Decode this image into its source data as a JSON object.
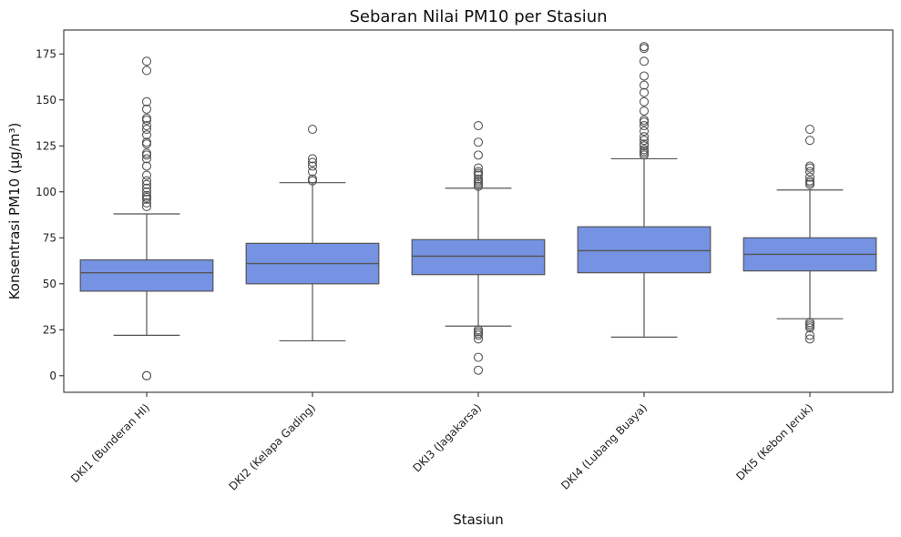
{
  "chart_data": {
    "type": "box",
    "title": "Sebaran Nilai PM10 per Stasiun",
    "xlabel": "Stasiun",
    "ylabel": "Konsentrasi PM10 (µg/m³)",
    "ylim": [
      -9,
      188
    ],
    "yticks": [
      0,
      25,
      50,
      75,
      100,
      125,
      150,
      175
    ],
    "box_color": "#7592e3",
    "line_color": "#555555",
    "grid": false,
    "legend": "none",
    "categories": [
      "DKI1 (Bunderan HI)",
      "DKI2 (Kelapa Gading)",
      "DKI3 (Jagakarsa)",
      "DKI4 (Lubang Buaya)",
      "DKI5 (Kebon Jeruk)"
    ],
    "series": [
      {
        "whisker_low": 22,
        "q1": 46,
        "median": 56,
        "q3": 63,
        "whisker_high": 88,
        "outliers": [
          0,
          0,
          92,
          94,
          96,
          97,
          98,
          100,
          102,
          104,
          106,
          109,
          114,
          118,
          120,
          121,
          126,
          127,
          131,
          134,
          136,
          139,
          140,
          145,
          149,
          166,
          171
        ]
      },
      {
        "whisker_low": 19,
        "q1": 50,
        "median": 61,
        "q3": 72,
        "whisker_high": 105,
        "outliers": [
          106,
          107,
          111,
          114,
          116,
          118,
          134
        ]
      },
      {
        "whisker_low": 27,
        "q1": 55,
        "median": 65,
        "q3": 74,
        "whisker_high": 102,
        "outliers": [
          3,
          10,
          20,
          22,
          23,
          24,
          25,
          103,
          104,
          105,
          106,
          107,
          109,
          110,
          111,
          113,
          120,
          127,
          136
        ]
      },
      {
        "whisker_low": 21,
        "q1": 56,
        "median": 68,
        "q3": 81,
        "whisker_high": 118,
        "outliers": [
          120,
          121,
          122,
          123,
          125,
          126,
          128,
          130,
          133,
          136,
          138,
          139,
          144,
          149,
          154,
          158,
          163,
          171,
          178,
          179
        ]
      },
      {
        "whisker_low": 31,
        "q1": 57,
        "median": 66,
        "q3": 75,
        "whisker_high": 101,
        "outliers": [
          20,
          22,
          26,
          27,
          28,
          29,
          104,
          105,
          106,
          108,
          111,
          113,
          114,
          128,
          134
        ]
      }
    ]
  }
}
